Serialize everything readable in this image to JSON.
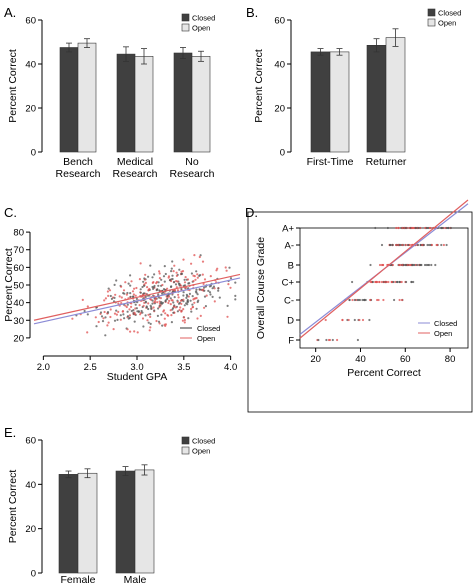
{
  "chart_data": [
    {
      "panel": "A.",
      "type": "bar",
      "ylabel": "Percent Correct",
      "ylim": [
        0,
        60
      ],
      "yticks": [
        0,
        20,
        40,
        60
      ],
      "categories": [
        "Bench\nResearch",
        "Medical\nResearch",
        "No\nResearch"
      ],
      "series": [
        {
          "name": "Closed",
          "values": [
            47.5,
            44.5,
            45
          ],
          "errors": [
            2,
            3.3,
            2.5
          ]
        },
        {
          "name": "Open",
          "values": [
            49.5,
            43.5,
            43.5
          ],
          "errors": [
            2,
            3.5,
            2.3
          ]
        }
      ],
      "legend": "top-right"
    },
    {
      "panel": "B.",
      "type": "bar",
      "ylabel": "Percent Correct",
      "ylim": [
        0,
        60
      ],
      "yticks": [
        0,
        20,
        40,
        60
      ],
      "categories": [
        "First-Time",
        "Returner"
      ],
      "series": [
        {
          "name": "Closed",
          "values": [
            45.5,
            48.5
          ],
          "errors": [
            1.5,
            3
          ]
        },
        {
          "name": "Open",
          "values": [
            45.5,
            52
          ],
          "errors": [
            1.5,
            4
          ]
        }
      ],
      "legend": "top-right"
    },
    {
      "panel": "C.",
      "type": "scatter",
      "xlabel": "Student GPA",
      "ylabel": "Percent Correct",
      "xlim": [
        1.9,
        4.1
      ],
      "ylim": [
        12,
        88
      ],
      "xticks": [
        2.0,
        2.5,
        3.0,
        3.5,
        4.0
      ],
      "yticks": [
        20,
        30,
        40,
        50,
        60,
        70,
        80
      ],
      "fits": [
        {
          "name": "Closed",
          "x": [
            1.9,
            4.1
          ],
          "y": [
            28,
            54
          ]
        },
        {
          "name": "Open",
          "x": [
            1.9,
            4.1
          ],
          "y": [
            30,
            56
          ]
        }
      ],
      "legend": "bottom-right"
    },
    {
      "panel": "D.",
      "type": "scatter",
      "xlabel": "Percent Correct",
      "ylabel": "Overall Course Grade",
      "xlim": [
        13,
        88
      ],
      "xticks": [
        20,
        40,
        60,
        80
      ],
      "grade_levels": [
        "F",
        "D",
        "C-",
        "C+",
        "B",
        "A-",
        "A+"
      ],
      "fits": [
        {
          "name": "Closed",
          "x": [
            13,
            88
          ],
          "y": [
            0.3,
            7.3
          ]
        },
        {
          "name": "Open",
          "x": [
            13,
            88
          ],
          "y": [
            0.1,
            7.5
          ]
        }
      ],
      "legend": "bottom-right"
    },
    {
      "panel": "E.",
      "type": "bar",
      "ylabel": "Percent Correct",
      "ylim": [
        0,
        60
      ],
      "yticks": [
        0,
        20,
        40,
        60
      ],
      "categories": [
        "Female",
        "Male"
      ],
      "series": [
        {
          "name": "Closed",
          "values": [
            44.5,
            46
          ],
          "errors": [
            1.5,
            2
          ]
        },
        {
          "name": "Open",
          "values": [
            45,
            46.5
          ],
          "errors": [
            2,
            2.3
          ]
        }
      ],
      "legend": "top-right"
    }
  ],
  "colors": {
    "closed_bar": "#404040",
    "open_bar": "#e6e6e6",
    "closed_line": "#8b8bd6",
    "open_line": "#e06060",
    "closed_point": "#555555",
    "open_point": "#e05050"
  }
}
